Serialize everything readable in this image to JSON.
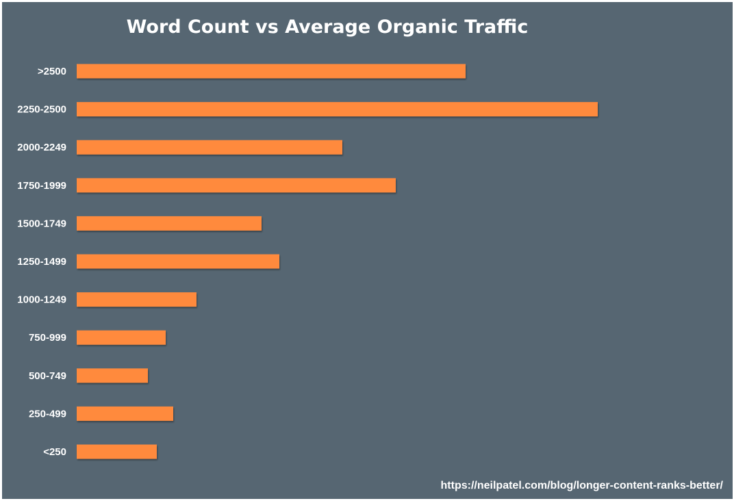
{
  "chart_data": {
    "type": "bar",
    "orientation": "horizontal",
    "title": "Word Count vs Average Organic Traffic",
    "xlabel": "",
    "ylabel": "",
    "categories": [
      ">2500",
      "2250-2500",
      "2000-2249",
      "1750-1999",
      "1500-1749",
      "1250-1499",
      "1000-1249",
      "750-999",
      "500-749",
      "250-499",
      "<250"
    ],
    "values": [
      568,
      761,
      388,
      466,
      270,
      296,
      175,
      130,
      104,
      141,
      117
    ],
    "xlim": [
      0,
      950
    ],
    "grid": false,
    "legend": "none",
    "bar_color": "#FF8A3D",
    "background_color": "#566672",
    "source": "https://neilpatel.com/blog/longer-content-ranks-better/"
  }
}
